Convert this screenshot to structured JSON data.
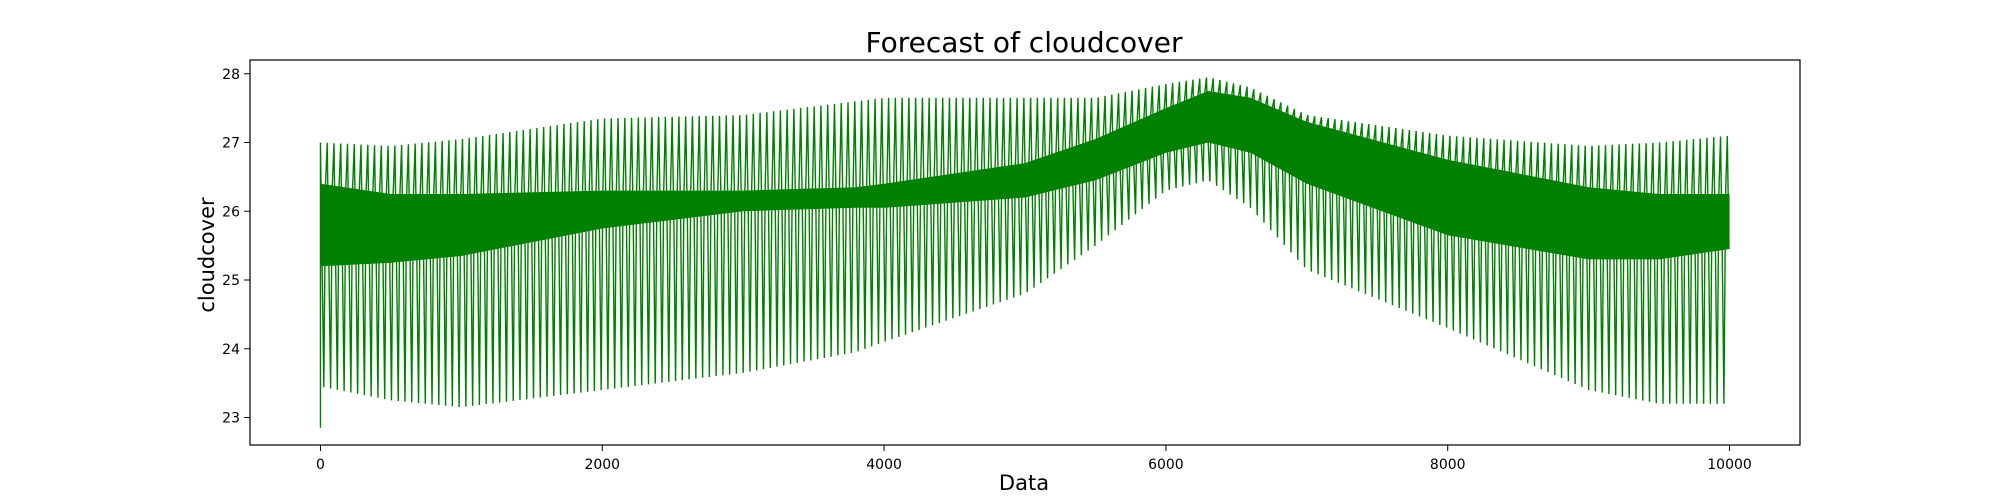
{
  "chart_data": {
    "type": "line",
    "title": "Forecast of cloudcover",
    "xlabel": "Data",
    "ylabel": "cloudcover",
    "xlim": [
      -500,
      10500
    ],
    "ylim": [
      22.6,
      28.2
    ],
    "xticks": [
      0,
      2000,
      4000,
      6000,
      8000,
      10000
    ],
    "yticks": [
      23,
      24,
      25,
      26,
      27,
      28
    ],
    "grid": false,
    "legend": "none",
    "series": [
      {
        "color": "#008000",
        "oscillation_period": 48,
        "x": [
          0,
          500,
          1000,
          2000,
          3000,
          3800,
          4000,
          5000,
          5500,
          6000,
          6300,
          6600,
          7000,
          8000,
          9000,
          9500,
          10000
        ],
        "upper_envelope": [
          27.0,
          26.95,
          27.05,
          27.35,
          27.4,
          27.6,
          27.65,
          27.65,
          27.65,
          27.85,
          27.95,
          27.8,
          27.4,
          27.1,
          26.95,
          27.0,
          27.1
        ],
        "lower_envelope": [
          23.45,
          23.25,
          23.15,
          23.4,
          23.65,
          23.95,
          24.1,
          24.8,
          25.5,
          26.3,
          26.45,
          26.05,
          25.15,
          24.3,
          23.4,
          23.2,
          23.2
        ],
        "inner_upper": [
          26.4,
          26.25,
          26.25,
          26.3,
          26.3,
          26.35,
          26.4,
          26.7,
          27.05,
          27.5,
          27.75,
          27.65,
          27.3,
          26.75,
          26.35,
          26.25,
          26.25
        ],
        "inner_lower": [
          25.2,
          25.25,
          25.35,
          25.75,
          26.0,
          26.05,
          26.05,
          26.2,
          26.45,
          26.85,
          27.0,
          26.85,
          26.4,
          25.65,
          25.3,
          25.3,
          25.45
        ]
      }
    ]
  }
}
